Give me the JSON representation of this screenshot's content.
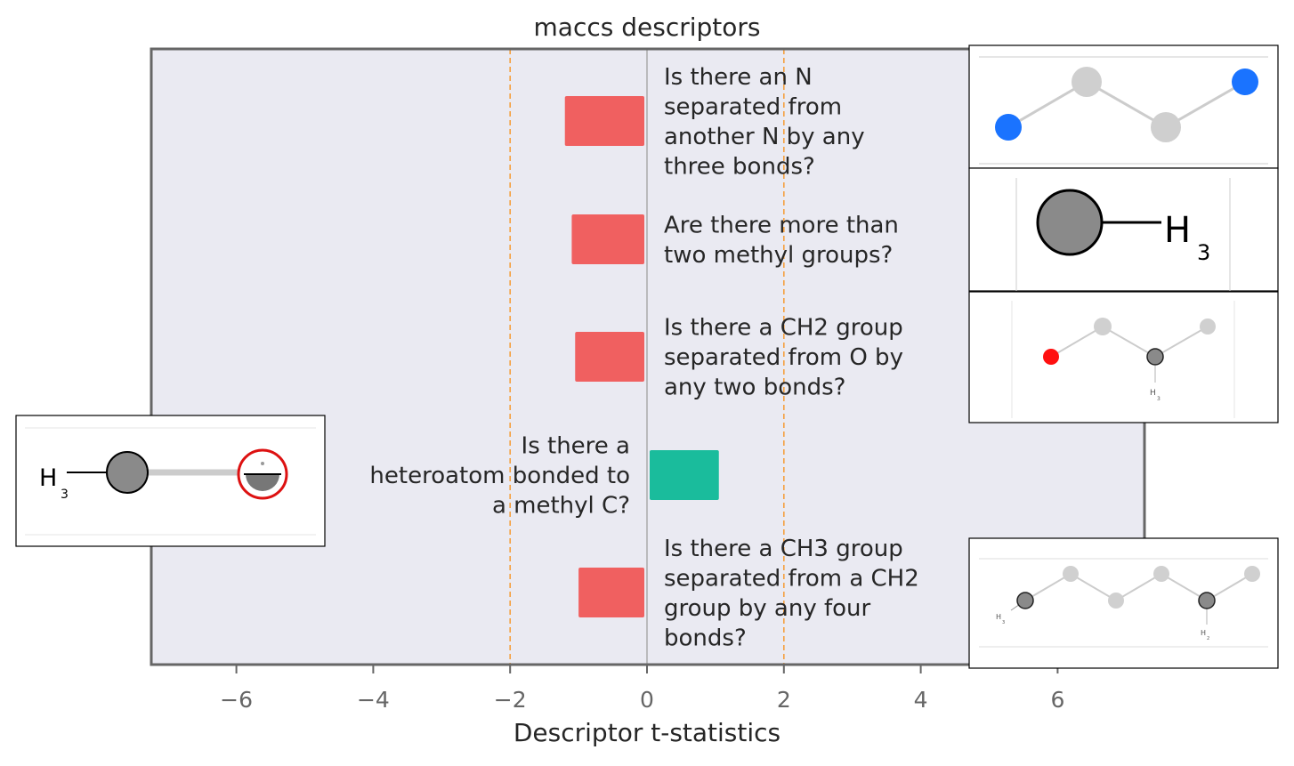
{
  "chart_data": {
    "type": "bar",
    "orientation": "horizontal",
    "title": "maccs descriptors",
    "xlabel": "Descriptor t-statistics",
    "ylabel": "",
    "xlim": [
      -7.3,
      7.3
    ],
    "xticks": [
      -6,
      -4,
      -2,
      0,
      2,
      4,
      6
    ],
    "xtick_labels": [
      "−6",
      "−4",
      "−2",
      "0",
      "2",
      "4",
      "6"
    ],
    "threshold_lines": [
      -2,
      2
    ],
    "grid": false,
    "categories": [
      "Is there an N separated from another N by any three bonds?",
      "Are there more than two methyl groups?",
      "Is there a CH2 group separated from O by any two bonds?",
      "Is there a heteroatom bonded to a methyl C?",
      "Is there a CH3 group separated from a CH2 group by any four bonds?"
    ],
    "label_lines": [
      [
        "Is there an N",
        "separated from",
        "another N by any",
        "three bonds?"
      ],
      [
        "Are there more than",
        "two methyl groups?"
      ],
      [
        "Is there a CH2 group",
        "separated from O by",
        "any two bonds?"
      ],
      [
        "Is there a",
        "heteroatom bonded to",
        "a methyl C?"
      ],
      [
        "Is there a CH3 group",
        "separated from a CH2",
        "group by any four",
        "bonds?"
      ]
    ],
    "values": [
      -1.2,
      -1.1,
      -1.05,
      1.05,
      -1.0
    ],
    "colors": {
      "negative": "#f06060",
      "positive": "#1abc9c",
      "threshold": "#f5a040",
      "plot_bg": "#eaeaf2"
    },
    "insets": [
      {
        "structure": "N-C-C-N chain",
        "atom_labels": []
      },
      {
        "structure": "methyl group",
        "atom_labels": [
          "H",
          "3"
        ]
      },
      {
        "structure": "O-C-C-C chain",
        "atom_labels": [
          "H",
          "3"
        ]
      },
      {
        "structure": "methyl bonded to heteroatom",
        "atom_labels": [
          "H",
          "3"
        ]
      },
      {
        "structure": "CH3 to CH2 chain",
        "atom_labels": [
          "H",
          "3",
          "H",
          "2"
        ]
      }
    ]
  }
}
